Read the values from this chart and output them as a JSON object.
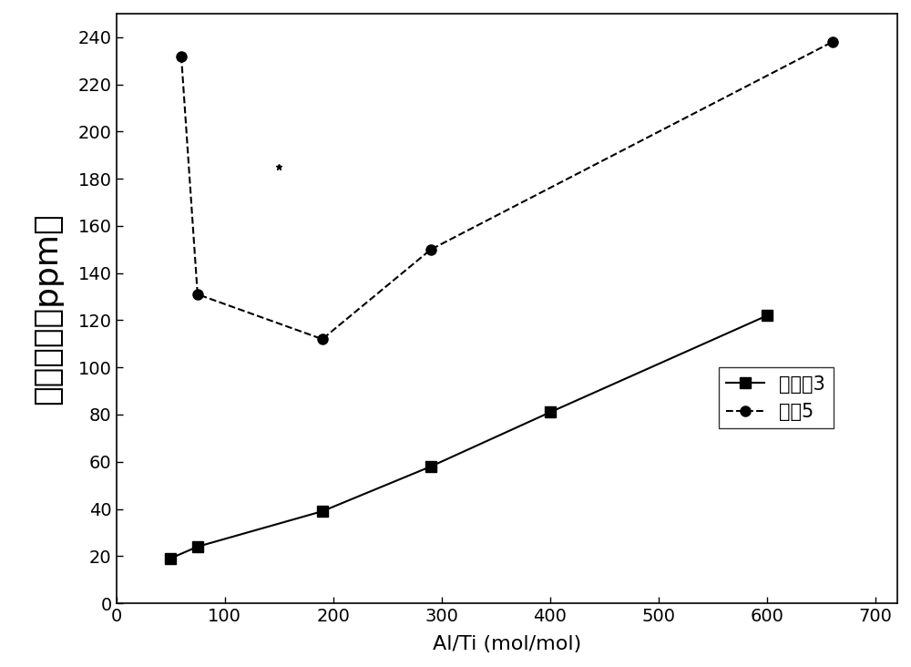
{
  "series1_label": "实施例3",
  "series1_x": [
    50,
    75,
    190,
    290,
    400,
    600
  ],
  "series1_y": [
    19,
    24,
    39,
    58,
    81,
    122
  ],
  "series1_linestyle": "-",
  "series1_marker": "s",
  "series2_label": "对比5",
  "series2_x": [
    60,
    75,
    190,
    290,
    660
  ],
  "series2_y": [
    232,
    131,
    112,
    150,
    238
  ],
  "series2_linestyle": "--",
  "series2_marker": "o",
  "xlabel": "Al/Ti (mol/mol)",
  "ylabel": "灰分含量（ppm）",
  "xlim": [
    0,
    720
  ],
  "ylim": [
    0,
    250
  ],
  "xticks": [
    0,
    100,
    200,
    300,
    400,
    500,
    600,
    700
  ],
  "yticks": [
    0,
    20,
    40,
    60,
    80,
    100,
    120,
    140,
    160,
    180,
    200,
    220,
    240
  ],
  "background_color": "#ffffff",
  "ylabel_fontsize": 26,
  "xlabel_fontsize": 16,
  "legend_fontsize": 15,
  "tick_fontsize": 14,
  "linewidth": 1.5,
  "markersize": 8
}
